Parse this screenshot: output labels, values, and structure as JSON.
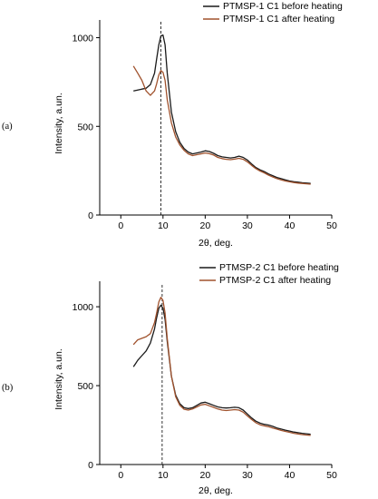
{
  "colors": {
    "before": "#1a1a1a",
    "after": "#a0522d",
    "axis": "#000000",
    "marker_line": "#000000"
  },
  "chart_data": [
    {
      "type": "line",
      "panel_label": "(a)",
      "xlabel": "2θ, deg.",
      "ylabel": "Intensity, a.un.",
      "xlim": [
        -5,
        50
      ],
      "ylim": [
        0,
        1100
      ],
      "xticks": [
        0,
        10,
        20,
        30,
        40,
        50
      ],
      "yticks": [
        0,
        500,
        1000
      ],
      "grid": false,
      "legend_position": "top-right",
      "reference_line_x": 9.5,
      "series": [
        {
          "name": "PTMSP-1 C1 before heating",
          "color": "before",
          "points": [
            [
              3,
              700
            ],
            [
              4,
              705
            ],
            [
              5,
              710
            ],
            [
              6,
              715
            ],
            [
              7,
              735
            ],
            [
              8,
              800
            ],
            [
              8.5,
              880
            ],
            [
              9,
              960
            ],
            [
              9.5,
              1010
            ],
            [
              10,
              1015
            ],
            [
              10.5,
              960
            ],
            [
              11,
              800
            ],
            [
              12,
              580
            ],
            [
              13,
              470
            ],
            [
              14,
              410
            ],
            [
              15,
              375
            ],
            [
              16,
              355
            ],
            [
              17,
              345
            ],
            [
              18,
              350
            ],
            [
              19,
              355
            ],
            [
              20,
              362
            ],
            [
              21,
              358
            ],
            [
              22,
              348
            ],
            [
              23,
              335
            ],
            [
              24,
              328
            ],
            [
              25,
              325
            ],
            [
              26,
              322
            ],
            [
              27,
              325
            ],
            [
              28,
              332
            ],
            [
              29,
              325
            ],
            [
              30,
              310
            ],
            [
              31,
              288
            ],
            [
              32,
              268
            ],
            [
              33,
              255
            ],
            [
              34,
              245
            ],
            [
              35,
              232
            ],
            [
              36,
              222
            ],
            [
              37,
              212
            ],
            [
              38,
              205
            ],
            [
              39,
              198
            ],
            [
              40,
              192
            ],
            [
              41,
              188
            ],
            [
              42,
              185
            ],
            [
              43,
              182
            ],
            [
              44,
              180
            ],
            [
              45,
              178
            ]
          ]
        },
        {
          "name": "PTMSP-1 C1 after heating",
          "color": "after",
          "points": [
            [
              3,
              840
            ],
            [
              4,
              800
            ],
            [
              5,
              760
            ],
            [
              6,
              700
            ],
            [
              7,
              675
            ],
            [
              8,
              700
            ],
            [
              8.5,
              740
            ],
            [
              9,
              790
            ],
            [
              9.5,
              815
            ],
            [
              10,
              805
            ],
            [
              10.5,
              760
            ],
            [
              11,
              650
            ],
            [
              12,
              520
            ],
            [
              13,
              440
            ],
            [
              14,
              395
            ],
            [
              15,
              365
            ],
            [
              16,
              345
            ],
            [
              17,
              335
            ],
            [
              18,
              340
            ],
            [
              19,
              345
            ],
            [
              20,
              350
            ],
            [
              21,
              346
            ],
            [
              22,
              338
            ],
            [
              23,
              325
            ],
            [
              24,
              318
            ],
            [
              25,
              314
            ],
            [
              26,
              312
            ],
            [
              27,
              315
            ],
            [
              28,
              320
            ],
            [
              29,
              314
            ],
            [
              30,
              300
            ],
            [
              31,
              280
            ],
            [
              32,
              262
            ],
            [
              33,
              248
            ],
            [
              34,
              238
            ],
            [
              35,
              225
            ],
            [
              36,
              215
            ],
            [
              37,
              205
            ],
            [
              38,
              198
            ],
            [
              39,
              192
            ],
            [
              40,
              187
            ],
            [
              41,
              183
            ],
            [
              42,
              180
            ],
            [
              43,
              178
            ],
            [
              44,
              176
            ],
            [
              45,
              174
            ]
          ]
        }
      ]
    },
    {
      "type": "line",
      "panel_label": "(b)",
      "xlabel": "2θ, deg.",
      "ylabel": "Intensity, a.un.",
      "xlim": [
        -5,
        50
      ],
      "ylim": [
        0,
        1150
      ],
      "xticks": [
        0,
        10,
        20,
        30,
        40,
        50
      ],
      "yticks": [
        0,
        500,
        1000
      ],
      "grid": false,
      "legend_position": "top-right",
      "reference_line_x": 9.8,
      "series": [
        {
          "name": "PTMSP-2 C1 before heating",
          "color": "before",
          "points": [
            [
              3,
              620
            ],
            [
              3.5,
              640
            ],
            [
              4,
              660
            ],
            [
              5,
              690
            ],
            [
              6,
              720
            ],
            [
              7,
              770
            ],
            [
              8,
              860
            ],
            [
              8.5,
              930
            ],
            [
              9,
              990
            ],
            [
              9.5,
              1010
            ],
            [
              10,
              990
            ],
            [
              10.5,
              920
            ],
            [
              11,
              780
            ],
            [
              12,
              560
            ],
            [
              13,
              440
            ],
            [
              14,
              385
            ],
            [
              15,
              360
            ],
            [
              16,
              355
            ],
            [
              17,
              360
            ],
            [
              18,
              375
            ],
            [
              19,
              390
            ],
            [
              20,
              395
            ],
            [
              21,
              385
            ],
            [
              22,
              375
            ],
            [
              23,
              365
            ],
            [
              24,
              360
            ],
            [
              25,
              358
            ],
            [
              26,
              360
            ],
            [
              27,
              363
            ],
            [
              28,
              360
            ],
            [
              29,
              345
            ],
            [
              30,
              320
            ],
            [
              31,
              295
            ],
            [
              32,
              275
            ],
            [
              33,
              262
            ],
            [
              34,
              255
            ],
            [
              35,
              250
            ],
            [
              36,
              242
            ],
            [
              37,
              232
            ],
            [
              38,
              225
            ],
            [
              39,
              218
            ],
            [
              40,
              212
            ],
            [
              41,
              206
            ],
            [
              42,
              202
            ],
            [
              43,
              198
            ],
            [
              44,
              195
            ],
            [
              45,
              192
            ]
          ]
        },
        {
          "name": "PTMSP-2 C1 after heating",
          "color": "after",
          "points": [
            [
              3,
              760
            ],
            [
              4,
              790
            ],
            [
              5,
              800
            ],
            [
              6,
              810
            ],
            [
              7,
              830
            ],
            [
              8,
              900
            ],
            [
              8.5,
              960
            ],
            [
              9,
              1030
            ],
            [
              9.5,
              1060
            ],
            [
              10,
              1040
            ],
            [
              10.5,
              960
            ],
            [
              11,
              800
            ],
            [
              12,
              560
            ],
            [
              13,
              430
            ],
            [
              14,
              375
            ],
            [
              15,
              350
            ],
            [
              16,
              345
            ],
            [
              17,
              352
            ],
            [
              18,
              365
            ],
            [
              19,
              378
            ],
            [
              20,
              382
            ],
            [
              21,
              372
            ],
            [
              22,
              362
            ],
            [
              23,
              352
            ],
            [
              24,
              345
            ],
            [
              25,
              342
            ],
            [
              26,
              345
            ],
            [
              27,
              348
            ],
            [
              28,
              345
            ],
            [
              29,
              332
            ],
            [
              30,
              308
            ],
            [
              31,
              285
            ],
            [
              32,
              265
            ],
            [
              33,
              252
            ],
            [
              34,
              245
            ],
            [
              35,
              240
            ],
            [
              36,
              232
            ],
            [
              37,
              224
            ],
            [
              38,
              216
            ],
            [
              39,
              210
            ],
            [
              40,
              204
            ],
            [
              41,
              198
            ],
            [
              42,
              194
            ],
            [
              43,
              190
            ],
            [
              44,
              187
            ],
            [
              45,
              185
            ]
          ]
        }
      ]
    }
  ]
}
